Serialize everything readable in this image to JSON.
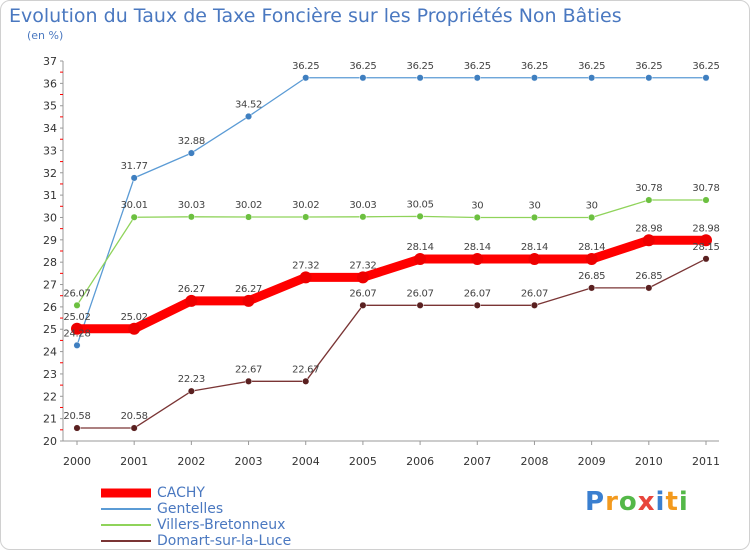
{
  "chart_data": {
    "type": "line",
    "title": "Evolution du Taux de Taxe Foncière sur les Propriétés Non Bâties",
    "subtitle": "(en %)",
    "xlabel": "",
    "ylabel": "",
    "x": [
      "2000",
      "2001",
      "2002",
      "2003",
      "2004",
      "2005",
      "2006",
      "2007",
      "2008",
      "2009",
      "2010",
      "2011"
    ],
    "ylim": [
      20,
      37
    ],
    "yticks": [
      20,
      21,
      22,
      23,
      24,
      25,
      26,
      27,
      28,
      29,
      30,
      31,
      32,
      33,
      34,
      35,
      36,
      37
    ],
    "grid": false,
    "legend_position": "bottom-left",
    "series": [
      {
        "name": "Gentelles",
        "color": "#5b9bd5",
        "marker": "#3f7fc0",
        "values": [
          24.28,
          31.77,
          32.88,
          34.52,
          36.25,
          36.25,
          36.25,
          36.25,
          36.25,
          36.25,
          36.25,
          36.25
        ],
        "labels": [
          "24.28",
          "31.77",
          "32.88",
          "34.52",
          "36.25",
          "36.25",
          "36.25",
          "36.25",
          "36.25",
          "36.25",
          "36.25",
          "36.25"
        ]
      },
      {
        "name": "Villers-Bretonneux",
        "color": "#8fd35a",
        "marker": "#6cc040",
        "values": [
          26.07,
          30.01,
          30.03,
          30.02,
          30.02,
          30.03,
          30.05,
          30,
          30,
          30,
          30.78,
          30.78
        ],
        "labels": [
          "26.07",
          "30.01",
          "30.03",
          "30.02",
          "30.02",
          "30.03",
          "30.05",
          "30",
          "30",
          "30",
          "30.78",
          "30.78"
        ]
      },
      {
        "name": "Domart-sur-la-Luce",
        "color": "#7a3535",
        "marker": "#5a2020",
        "values": [
          20.58,
          20.58,
          22.23,
          22.67,
          22.67,
          26.07,
          26.07,
          26.07,
          26.07,
          26.85,
          26.85,
          28.15
        ],
        "labels": [
          "20.58",
          "20.58",
          "22.23",
          "22.67",
          "22.67",
          "26.07",
          "26.07",
          "26.07",
          "26.07",
          "26.85",
          "26.85",
          "28.15"
        ]
      },
      {
        "name": "CACHY",
        "color": "#ff0000",
        "marker": "#ee0000",
        "values": [
          25.02,
          25.02,
          26.27,
          26.27,
          27.32,
          27.32,
          28.14,
          28.14,
          28.14,
          28.14,
          28.98,
          28.98
        ],
        "labels": [
          "25.02",
          "25.02",
          "26.27",
          "26.27",
          "27.32",
          "27.32",
          "28.14",
          "28.14",
          "28.14",
          "28.14",
          "28.98",
          "28.98"
        ]
      }
    ]
  },
  "legend": {
    "items": [
      {
        "name": "CACHY",
        "color": "#ff0000"
      },
      {
        "name": "Gentelles",
        "color": "#5b9bd5"
      },
      {
        "name": "Villers-Bretonneux",
        "color": "#8fd35a"
      },
      {
        "name": "Domart-sur-la-Luce",
        "color": "#7a3535"
      }
    ]
  },
  "logo": {
    "letters": [
      "P",
      "r",
      "o",
      "x",
      "i",
      "t",
      "i"
    ]
  }
}
